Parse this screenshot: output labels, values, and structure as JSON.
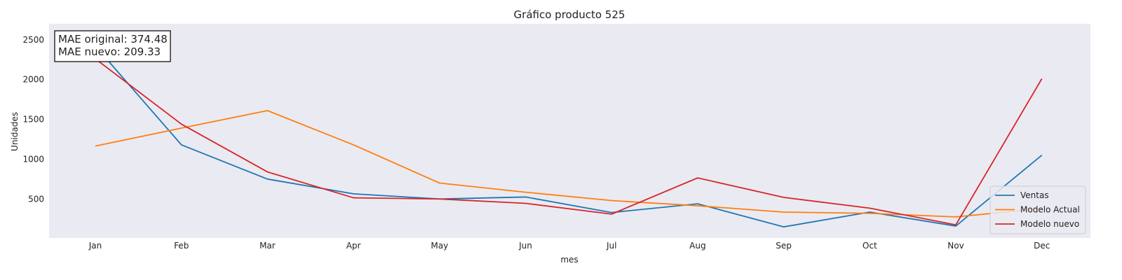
{
  "chart_data": {
    "type": "line",
    "title": "Gráfico producto 525",
    "xlabel": "mes",
    "ylabel": "Unidades",
    "categories": [
      "Jan",
      "Feb",
      "Mar",
      "Apr",
      "May",
      "Jun",
      "Jul",
      "Aug",
      "Sep",
      "Oct",
      "Nov",
      "Dec"
    ],
    "yticks": [
      500,
      1000,
      1500,
      2000,
      2500
    ],
    "ylim": [
      10,
      2700
    ],
    "grid": false,
    "background": "#eaeaf2",
    "legend_position": "lower-right",
    "annotation": {
      "line1": "MAE original: 374.48",
      "line2": "MAE nuevo: 209.33"
    },
    "series": [
      {
        "name": "Ventas",
        "color": "#1f77b4",
        "values": [
          2420,
          1180,
          750,
          565,
          500,
          525,
          330,
          440,
          150,
          335,
          160,
          1050
        ]
      },
      {
        "name": "Modelo Actual",
        "color": "#ff7f0e",
        "values": [
          1165,
          1390,
          1610,
          1180,
          700,
          585,
          480,
          415,
          335,
          320,
          275,
          380
        ]
      },
      {
        "name": "Modelo nuevo",
        "color": "#d62728",
        "values": [
          2260,
          1440,
          840,
          515,
          500,
          445,
          310,
          765,
          520,
          385,
          175,
          2010
        ]
      }
    ]
  }
}
